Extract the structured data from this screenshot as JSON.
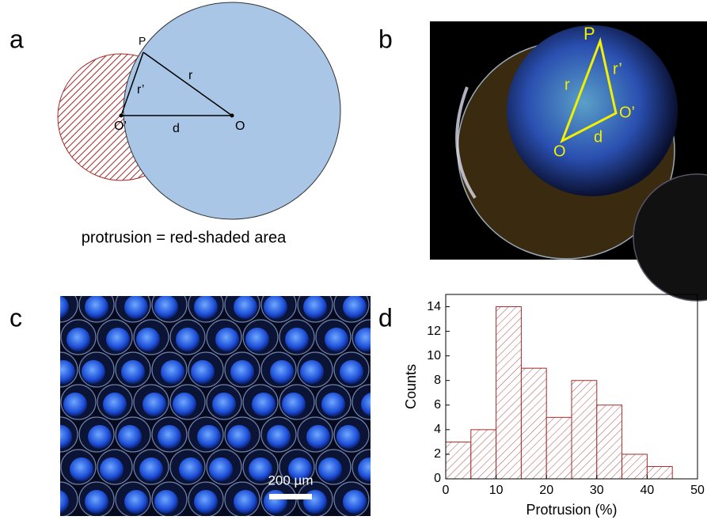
{
  "panels": {
    "a": {
      "label": "a",
      "P": "P",
      "r": "r",
      "r_prime": "r’",
      "O_prime": "O’",
      "O": "O",
      "d": "d",
      "caption": "protrusion = red-shaded area"
    },
    "b": {
      "label": "b",
      "P": "P",
      "r": "r",
      "r_prime": "r’",
      "O_prime": "O’",
      "O": "O",
      "d": "d"
    },
    "c": {
      "label": "c",
      "scale_bar": "200 µm"
    },
    "d": {
      "label": "d"
    }
  },
  "chart_data": {
    "type": "histogram",
    "xlabel": "Protrusion (%)",
    "ylabel": "Counts",
    "bins": [
      0,
      5,
      10,
      15,
      20,
      25,
      30,
      35,
      40,
      45
    ],
    "values": [
      3,
      4,
      14,
      9,
      5,
      8,
      6,
      2,
      1
    ],
    "color": "#a52a2a",
    "xlim": [
      0,
      50
    ],
    "xticks": [
      0,
      10,
      20,
      30,
      40,
      50
    ],
    "ylim": [
      0,
      15
    ],
    "yticks": [
      0,
      2,
      4,
      6,
      8,
      10,
      12,
      14
    ]
  }
}
